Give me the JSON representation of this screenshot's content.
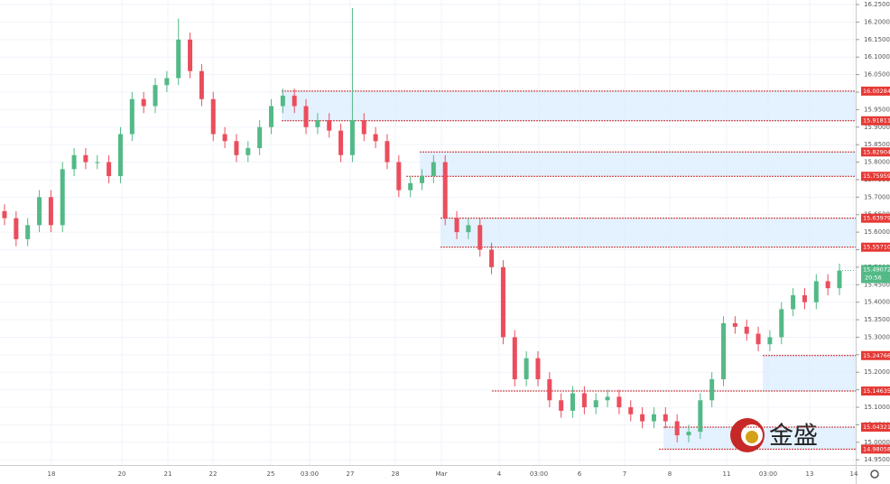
{
  "chart_data": {
    "type": "candlestick",
    "open": [
      15.66,
      15.64,
      15.58,
      15.62,
      15.7,
      15.62,
      15.78,
      15.82,
      15.8,
      15.8,
      15.76,
      15.88,
      15.98,
      15.96,
      16.02,
      16.04,
      16.15,
      16.06,
      15.98,
      15.88,
      15.86,
      15.82,
      15.84,
      15.9,
      15.96,
      15.99,
      15.96,
      15.9,
      15.92,
      15.89,
      15.82,
      15.92,
      15.88,
      15.86,
      15.8,
      15.72,
      15.74,
      15.76,
      15.8,
      15.64,
      15.6,
      15.62,
      15.55,
      15.5,
      15.3,
      15.18,
      15.24,
      15.18,
      15.12,
      15.09,
      15.14,
      15.1,
      15.12,
      15.13,
      15.1,
      15.08,
      15.06,
      15.08,
      15.06,
      15.02,
      15.03,
      15.12,
      15.18,
      15.34,
      15.33,
      15.31,
      15.28,
      15.3,
      15.38,
      15.42,
      15.4,
      15.46,
      15.44
    ],
    "high": [
      15.68,
      15.66,
      15.64,
      15.72,
      15.72,
      15.8,
      15.84,
      15.84,
      15.82,
      15.82,
      15.9,
      16.0,
      16.0,
      16.04,
      16.06,
      16.21,
      16.17,
      16.08,
      16.0,
      15.9,
      15.88,
      15.86,
      15.92,
      15.98,
      16.01,
      16.01,
      15.98,
      15.94,
      15.94,
      15.91,
      16.24,
      15.94,
      15.9,
      15.88,
      15.82,
      15.76,
      15.78,
      15.82,
      15.82,
      15.66,
      15.64,
      15.64,
      15.57,
      15.52,
      15.32,
      15.26,
      15.26,
      15.2,
      15.14,
      15.16,
      15.16,
      15.14,
      15.15,
      15.15,
      15.12,
      15.1,
      15.1,
      15.1,
      15.08,
      15.05,
      15.14,
      15.2,
      15.36,
      15.36,
      15.35,
      15.33,
      15.32,
      15.4,
      15.44,
      15.44,
      15.48,
      15.48,
      15.51
    ],
    "low": [
      15.62,
      15.56,
      15.56,
      15.6,
      15.6,
      15.6,
      15.76,
      15.78,
      15.78,
      15.74,
      15.74,
      15.86,
      15.94,
      15.94,
      16.0,
      16.02,
      16.04,
      15.96,
      15.86,
      15.84,
      15.8,
      15.8,
      15.82,
      15.88,
      15.94,
      15.94,
      15.88,
      15.88,
      15.87,
      15.8,
      15.8,
      15.86,
      15.84,
      15.78,
      15.7,
      15.7,
      15.72,
      15.74,
      15.62,
      15.58,
      15.58,
      15.53,
      15.48,
      15.28,
      15.16,
      15.16,
      15.16,
      15.1,
      15.07,
      15.07,
      15.08,
      15.08,
      15.1,
      15.08,
      15.06,
      15.04,
      15.04,
      15.04,
      15.0,
      15.0,
      15.01,
      15.1,
      15.16,
      15.31,
      15.29,
      15.26,
      15.26,
      15.28,
      15.36,
      15.38,
      15.38,
      15.42,
      15.42
    ],
    "close": [
      15.64,
      15.58,
      15.62,
      15.7,
      15.62,
      15.78,
      15.82,
      15.8,
      15.8,
      15.76,
      15.88,
      15.98,
      15.96,
      16.02,
      16.04,
      16.15,
      16.06,
      15.98,
      15.88,
      15.86,
      15.82,
      15.84,
      15.9,
      15.96,
      15.99,
      15.96,
      15.9,
      15.92,
      15.89,
      15.82,
      15.92,
      15.88,
      15.86,
      15.8,
      15.72,
      15.74,
      15.76,
      15.8,
      15.64,
      15.6,
      15.62,
      15.55,
      15.5,
      15.3,
      15.18,
      15.24,
      15.18,
      15.12,
      15.09,
      15.14,
      15.1,
      15.12,
      15.13,
      15.1,
      15.08,
      15.06,
      15.08,
      15.06,
      15.02,
      15.03,
      15.12,
      15.18,
      15.34,
      15.33,
      15.31,
      15.28,
      15.3,
      15.38,
      15.42,
      15.4,
      15.46,
      15.44,
      15.49
    ],
    "up_color": "#53b987",
    "down_color": "#eb4d5c",
    "ylim": [
      14.935,
      16.263
    ],
    "yticks": [
      {
        "value": 16.25,
        "label": "16.25000"
      },
      {
        "value": 16.2,
        "label": "16.20000"
      },
      {
        "value": 16.15,
        "label": "16.15000"
      },
      {
        "value": 16.1,
        "label": "16.10000"
      },
      {
        "value": 16.05,
        "label": "16.05000"
      },
      {
        "value": 16.0,
        "label": "16.00000"
      },
      {
        "value": 15.95,
        "label": "15.95000"
      },
      {
        "value": 15.9,
        "label": "15.90000"
      },
      {
        "value": 15.85,
        "label": "15.85000"
      },
      {
        "value": 15.8,
        "label": "15.80000"
      },
      {
        "value": 15.75,
        "label": "15.75000"
      },
      {
        "value": 15.7,
        "label": "15.70000"
      },
      {
        "value": 15.65,
        "label": "15.65000"
      },
      {
        "value": 15.6,
        "label": "15.60000"
      },
      {
        "value": 15.55,
        "label": "15.55000"
      },
      {
        "value": 15.5,
        "label": "15.50000"
      },
      {
        "value": 15.45,
        "label": "15.45000"
      },
      {
        "value": 15.4,
        "label": "15.40000"
      },
      {
        "value": 15.35,
        "label": "15.35000"
      },
      {
        "value": 15.3,
        "label": "15.30000"
      },
      {
        "value": 15.25,
        "label": "15.25000"
      },
      {
        "value": 15.2,
        "label": "15.20000"
      },
      {
        "value": 15.15,
        "label": "15.15000"
      },
      {
        "value": 15.1,
        "label": "15.10000"
      },
      {
        "value": 15.05,
        "label": "15.05000"
      },
      {
        "value": 15.0,
        "label": "15.00000"
      },
      {
        "value": 14.95,
        "label": "14.95000"
      }
    ],
    "time_labels": [
      "18",
      "20",
      "21",
      "22",
      "25",
      "03:00",
      "27",
      "28",
      "Mar",
      "4",
      "03:00",
      "6",
      "7",
      "8",
      "11",
      "03:00",
      "13",
      "14"
    ],
    "levels": [
      {
        "value": 16.00284,
        "label": "16.00284"
      },
      {
        "value": 15.91811,
        "label": "15.91811"
      },
      {
        "value": 15.82904,
        "label": "15.82904"
      },
      {
        "value": 15.75959,
        "label": "15.75959"
      },
      {
        "value": 15.63979,
        "label": "15.63979"
      },
      {
        "value": 15.5571,
        "label": "15.55710"
      },
      {
        "value": 15.24766,
        "label": "15.24766"
      },
      {
        "value": 15.14635,
        "label": "15.14635"
      },
      {
        "value": 15.04321,
        "label": "15.04321"
      },
      {
        "value": 14.98058,
        "label": "14.98058"
      }
    ],
    "last_price": {
      "value": 15.49072,
      "label": "15.49072"
    },
    "countdown": "20:56",
    "watermark": "金盛",
    "grid": true
  }
}
